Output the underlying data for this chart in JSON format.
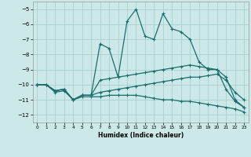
{
  "xlabel": "Humidex (Indice chaleur)",
  "background_color": "#cce8e8",
  "grid_color": "#aacfcf",
  "line_color": "#1a6e6e",
  "xlim": [
    -0.5,
    23.5
  ],
  "ylim": [
    -12.5,
    -4.5
  ],
  "xticks": [
    0,
    1,
    2,
    3,
    4,
    5,
    6,
    7,
    8,
    9,
    10,
    11,
    12,
    13,
    14,
    15,
    16,
    17,
    18,
    19,
    20,
    21,
    22,
    23
  ],
  "yticks": [
    -5,
    -6,
    -7,
    -8,
    -9,
    -10,
    -11,
    -12
  ],
  "line1_y": [
    -10.0,
    -10.0,
    -10.4,
    -10.3,
    -11.0,
    -10.7,
    -10.7,
    -7.3,
    -7.6,
    -9.5,
    -5.8,
    -5.0,
    -6.8,
    -7.0,
    -5.3,
    -6.3,
    -6.5,
    -7.0,
    -8.5,
    -9.0,
    -9.0,
    -10.3,
    -11.1,
    -11.5
  ],
  "line2_y": [
    -10.0,
    -10.0,
    -10.4,
    -10.3,
    -11.0,
    -10.7,
    -10.7,
    -9.7,
    -9.6,
    -9.5,
    -9.4,
    -9.3,
    -9.2,
    -9.1,
    -9.0,
    -8.9,
    -8.8,
    -8.7,
    -8.8,
    -8.9,
    -9.0,
    -9.5,
    -11.0,
    -11.5
  ],
  "line3_y": [
    -10.0,
    -10.0,
    -10.4,
    -10.3,
    -11.0,
    -10.7,
    -10.7,
    -10.5,
    -10.4,
    -10.3,
    -10.2,
    -10.1,
    -10.0,
    -9.9,
    -9.8,
    -9.7,
    -9.6,
    -9.5,
    -9.5,
    -9.4,
    -9.3,
    -9.7,
    -10.5,
    -11.0
  ],
  "line4_y": [
    -10.0,
    -10.0,
    -10.5,
    -10.4,
    -11.0,
    -10.8,
    -10.8,
    -10.8,
    -10.7,
    -10.7,
    -10.7,
    -10.7,
    -10.8,
    -10.9,
    -11.0,
    -11.0,
    -11.1,
    -11.1,
    -11.2,
    -11.3,
    -11.4,
    -11.5,
    -11.6,
    -11.8
  ]
}
